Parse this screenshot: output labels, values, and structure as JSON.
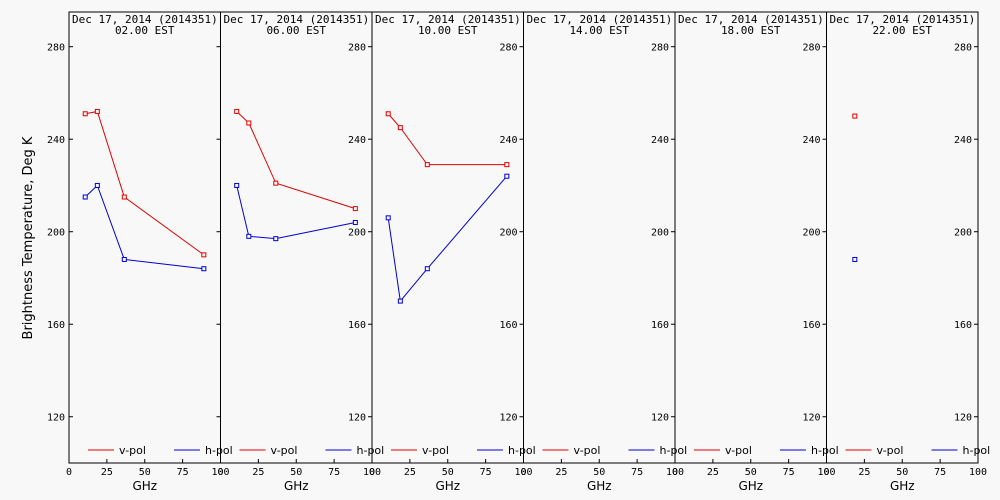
{
  "chart_data": {
    "type": "line",
    "ylabel": "Brightness Temperature, Deg K",
    "xlabel": "GHz",
    "xlim": [
      0,
      100
    ],
    "ylim": [
      100,
      295
    ],
    "x_ticks": [
      0,
      25,
      50,
      75,
      100
    ],
    "y_ticks": [
      120,
      160,
      200,
      240,
      280
    ],
    "legend": [
      "v-pol",
      "h-pol"
    ],
    "colors": {
      "v-pol": "#e00000",
      "h-pol": "#0000d0"
    },
    "panels": [
      {
        "title_line1": "Dec 17, 2014 (2014351)",
        "title_line2": "02.00 EST",
        "series": [
          {
            "name": "v-pol",
            "x": [
              10.7,
              18.7,
              36.5,
              89.0
            ],
            "y": [
              251,
              252,
              215,
              190
            ]
          },
          {
            "name": "h-pol",
            "x": [
              10.7,
              18.7,
              36.5,
              89.0
            ],
            "y": [
              215,
              220,
              188,
              184
            ]
          }
        ]
      },
      {
        "title_line1": "Dec 17, 2014 (2014351)",
        "title_line2": "06.00 EST",
        "series": [
          {
            "name": "v-pol",
            "x": [
              10.7,
              18.7,
              36.5,
              89.0
            ],
            "y": [
              252,
              247,
              221,
              210
            ]
          },
          {
            "name": "h-pol",
            "x": [
              10.7,
              18.7,
              36.5,
              89.0
            ],
            "y": [
              220,
              198,
              197,
              204
            ]
          }
        ]
      },
      {
        "title_line1": "Dec 17, 2014 (2014351)",
        "title_line2": "10.00 EST",
        "series": [
          {
            "name": "v-pol",
            "x": [
              10.7,
              18.7,
              36.5,
              89.0
            ],
            "y": [
              251,
              245,
              229,
              229
            ]
          },
          {
            "name": "h-pol",
            "x": [
              10.7,
              18.7,
              36.5,
              89.0
            ],
            "y": [
              206,
              170,
              184,
              224
            ]
          }
        ]
      },
      {
        "title_line1": "Dec 17, 2014 (2014351)",
        "title_line2": "14.00 EST",
        "series": [
          {
            "name": "v-pol",
            "x": [],
            "y": []
          },
          {
            "name": "h-pol",
            "x": [],
            "y": []
          }
        ]
      },
      {
        "title_line1": "Dec 17, 2014 (2014351)",
        "title_line2": "18.00 EST",
        "series": [
          {
            "name": "v-pol",
            "x": [],
            "y": []
          },
          {
            "name": "h-pol",
            "x": [],
            "y": []
          }
        ]
      },
      {
        "title_line1": "Dec 17, 2014 (2014351)",
        "title_line2": "22.00 EST",
        "series": [
          {
            "name": "v-pol",
            "x": [
              18.7
            ],
            "y": [
              250
            ]
          },
          {
            "name": "h-pol",
            "x": [
              18.7
            ],
            "y": [
              188
            ]
          }
        ]
      }
    ]
  }
}
